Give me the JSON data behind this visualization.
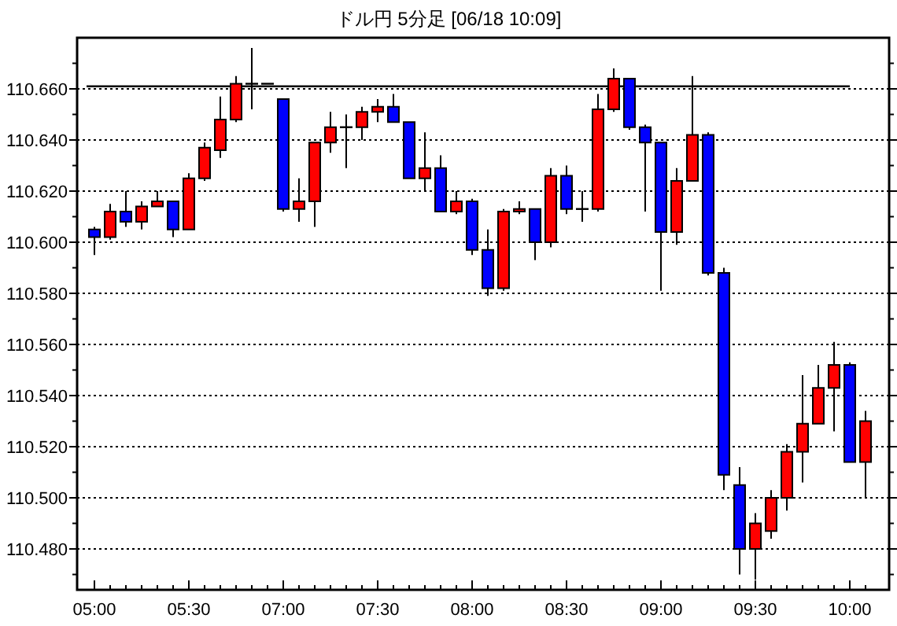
{
  "chart_data": {
    "type": "candlestick",
    "title": "ドル円 5分足 [06/18 10:09]",
    "categories": [
      "05:00",
      null,
      null,
      null,
      null,
      null,
      "05:30",
      null,
      null,
      null,
      null,
      null,
      "07:00",
      null,
      null,
      null,
      null,
      null,
      "07:30",
      null,
      null,
      null,
      null,
      null,
      "08:00",
      null,
      null,
      null,
      null,
      null,
      "08:30",
      null,
      null,
      null,
      null,
      null,
      "09:00",
      null,
      null,
      null,
      null,
      null,
      "09:30",
      null,
      null,
      null,
      null,
      null,
      "10:00",
      null
    ],
    "ohlc": [
      [
        110.605,
        110.606,
        110.595,
        110.602
      ],
      [
        110.602,
        110.615,
        110.601,
        110.612
      ],
      [
        110.612,
        110.62,
        110.606,
        110.608
      ],
      [
        110.608,
        110.616,
        110.605,
        110.614
      ],
      [
        110.614,
        110.62,
        110.614,
        110.616
      ],
      [
        110.616,
        110.616,
        110.602,
        110.605
      ],
      [
        110.605,
        110.627,
        110.605,
        110.625
      ],
      [
        110.625,
        110.639,
        110.624,
        110.637
      ],
      [
        110.636,
        110.657,
        110.633,
        110.648
      ],
      [
        110.648,
        110.665,
        110.647,
        110.662
      ],
      [
        110.662,
        110.676,
        110.652,
        110.662
      ],
      [
        110.662,
        110.662,
        110.662,
        110.662
      ],
      [
        110.656,
        110.656,
        110.612,
        110.613
      ],
      [
        110.613,
        110.625,
        110.608,
        110.616
      ],
      [
        110.616,
        110.639,
        110.606,
        110.639
      ],
      [
        110.639,
        110.651,
        110.635,
        110.645
      ],
      [
        110.645,
        110.65,
        110.629,
        110.645
      ],
      [
        110.645,
        110.653,
        110.64,
        110.651
      ],
      [
        110.651,
        110.656,
        110.647,
        110.653
      ],
      [
        110.653,
        110.658,
        110.647,
        110.647
      ],
      [
        110.647,
        110.647,
        110.625,
        110.625
      ],
      [
        110.625,
        110.643,
        110.62,
        110.629
      ],
      [
        110.629,
        110.634,
        110.612,
        110.612
      ],
      [
        110.612,
        110.62,
        110.611,
        110.616
      ],
      [
        110.616,
        110.617,
        110.595,
        110.597
      ],
      [
        110.597,
        110.605,
        110.579,
        110.582
      ],
      [
        110.582,
        110.613,
        110.581,
        110.612
      ],
      [
        110.612,
        110.616,
        110.611,
        110.613
      ],
      [
        110.613,
        110.613,
        110.593,
        110.6
      ],
      [
        110.6,
        110.629,
        110.598,
        110.626
      ],
      [
        110.626,
        110.63,
        110.611,
        110.613
      ],
      [
        110.613,
        110.62,
        110.608,
        110.613
      ],
      [
        110.613,
        110.658,
        110.612,
        110.652
      ],
      [
        110.652,
        110.668,
        110.651,
        110.664
      ],
      [
        110.664,
        110.664,
        110.644,
        110.645
      ],
      [
        110.645,
        110.646,
        110.612,
        110.639
      ],
      [
        110.639,
        110.639,
        110.581,
        110.604
      ],
      [
        110.604,
        110.629,
        110.599,
        110.624
      ],
      [
        110.624,
        110.665,
        110.624,
        110.642
      ],
      [
        110.642,
        110.643,
        110.587,
        110.588
      ],
      [
        110.588,
        110.59,
        110.503,
        110.509
      ],
      [
        110.505,
        110.512,
        110.47,
        110.48
      ],
      [
        110.48,
        110.494,
        110.468,
        110.49
      ],
      [
        110.487,
        110.503,
        110.484,
        110.5
      ],
      [
        110.5,
        110.521,
        110.495,
        110.518
      ],
      [
        110.518,
        110.548,
        110.506,
        110.529
      ],
      [
        110.529,
        110.552,
        110.529,
        110.543
      ],
      [
        110.543,
        110.561,
        110.526,
        110.552
      ],
      [
        110.552,
        110.553,
        110.514,
        110.514
      ],
      [
        110.514,
        110.534,
        110.5,
        110.53
      ]
    ],
    "colors": [
      "#0000ff",
      "#ff0000",
      "#0000ff",
      "#ff0000",
      "#ff0000",
      "#0000ff",
      "#ff0000",
      "#ff0000",
      "#ff0000",
      "#ff0000",
      "#000000",
      "#000000",
      "#0000ff",
      "#ff0000",
      "#ff0000",
      "#ff0000",
      "#000000",
      "#ff0000",
      "#ff0000",
      "#0000ff",
      "#0000ff",
      "#ff0000",
      "#0000ff",
      "#ff0000",
      "#0000ff",
      "#0000ff",
      "#ff0000",
      "#ff0000",
      "#0000ff",
      "#ff0000",
      "#0000ff",
      "#000000",
      "#ff0000",
      "#ff0000",
      "#0000ff",
      "#0000ff",
      "#0000ff",
      "#ff0000",
      "#ff0000",
      "#0000ff",
      "#0000ff",
      "#0000ff",
      "#ff0000",
      "#ff0000",
      "#ff0000",
      "#ff0000",
      "#ff0000",
      "#ff0000",
      "#0000ff",
      "#ff0000"
    ],
    "ylim": [
      110.464,
      110.68
    ],
    "yticks": [
      {
        "value": 110.47,
        "label": null
      },
      {
        "value": 110.48,
        "label": "110.480"
      },
      {
        "value": 110.49,
        "label": null
      },
      {
        "value": 110.5,
        "label": "110.500"
      },
      {
        "value": 110.51,
        "label": null
      },
      {
        "value": 110.52,
        "label": "110.520"
      },
      {
        "value": 110.53,
        "label": null
      },
      {
        "value": 110.54,
        "label": "110.540"
      },
      {
        "value": 110.55,
        "label": null
      },
      {
        "value": 110.56,
        "label": "110.560"
      },
      {
        "value": 110.57,
        "label": null
      },
      {
        "value": 110.58,
        "label": "110.580"
      },
      {
        "value": 110.59,
        "label": null
      },
      {
        "value": 110.6,
        "label": "110.600"
      },
      {
        "value": 110.61,
        "label": null
      },
      {
        "value": 110.62,
        "label": "110.620"
      },
      {
        "value": 110.63,
        "label": null
      },
      {
        "value": 110.64,
        "label": "110.640"
      },
      {
        "value": 110.65,
        "label": null
      },
      {
        "value": 110.66,
        "label": "110.660"
      },
      {
        "value": 110.67,
        "label": null
      }
    ],
    "ref_lines": [
      {
        "axis": "y",
        "value": 110.661,
        "color": "#000000"
      }
    ],
    "grid": "y"
  }
}
